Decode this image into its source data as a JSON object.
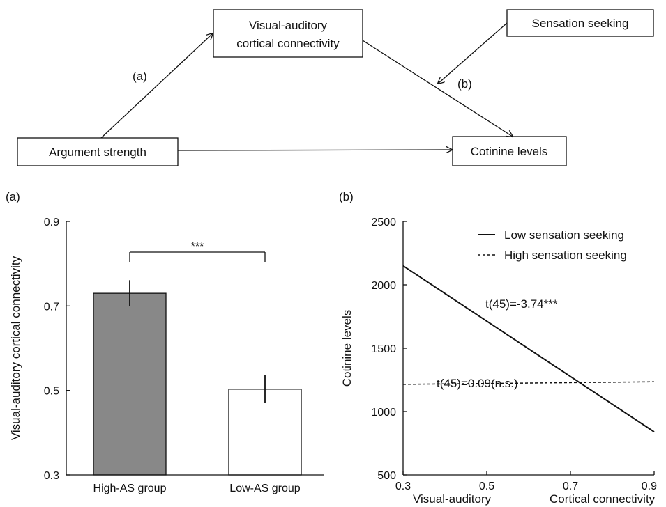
{
  "diagram": {
    "nodes": {
      "mediator": [
        "Visual-auditory",
        "cortical connectivity"
      ],
      "moderator": "Sensation seeking",
      "predictor": "Argument strength",
      "outcome": "Cotinine levels"
    },
    "edge_labels": {
      "a": "(a)",
      "b": "(b)"
    }
  },
  "panel_labels": {
    "left": "(a)",
    "right": "(b)"
  },
  "chart_data": [
    {
      "type": "bar",
      "categories": [
        "High-AS group",
        "Low-AS group"
      ],
      "values": [
        0.73,
        0.503
      ],
      "errors": [
        0.031,
        0.033
      ],
      "colors": [
        "#888888",
        "#ffffff"
      ],
      "ylabel": "Visual-auditory cortical connectivity",
      "ylim": [
        0.3,
        0.9
      ],
      "yticks": [
        "0.3",
        "0.5",
        "0.7",
        "0.9"
      ],
      "significance": "***"
    },
    {
      "type": "line",
      "x": [
        0.3,
        0.9
      ],
      "series": [
        {
          "name": "Low sensation seeking",
          "values": [
            2150,
            840
          ],
          "style": "solid",
          "annotation": "t(45)=-3.74***"
        },
        {
          "name": "High sensation seeking",
          "values": [
            1215,
            1235
          ],
          "style": "dashed",
          "annotation": "t(45)=0.09(n.s.)"
        }
      ],
      "ylabel": "Cotinine levels",
      "xlabel_parts": [
        "Visual-auditory",
        "Cortical connectivity"
      ],
      "xlim": [
        0.3,
        0.9
      ],
      "ylim": [
        500,
        2500
      ],
      "xticks": [
        "0.3",
        "0.5",
        "0.7",
        "0.9"
      ],
      "yticks": [
        "500",
        "1000",
        "1500",
        "2000",
        "2500"
      ],
      "legend": "top-right"
    }
  ]
}
